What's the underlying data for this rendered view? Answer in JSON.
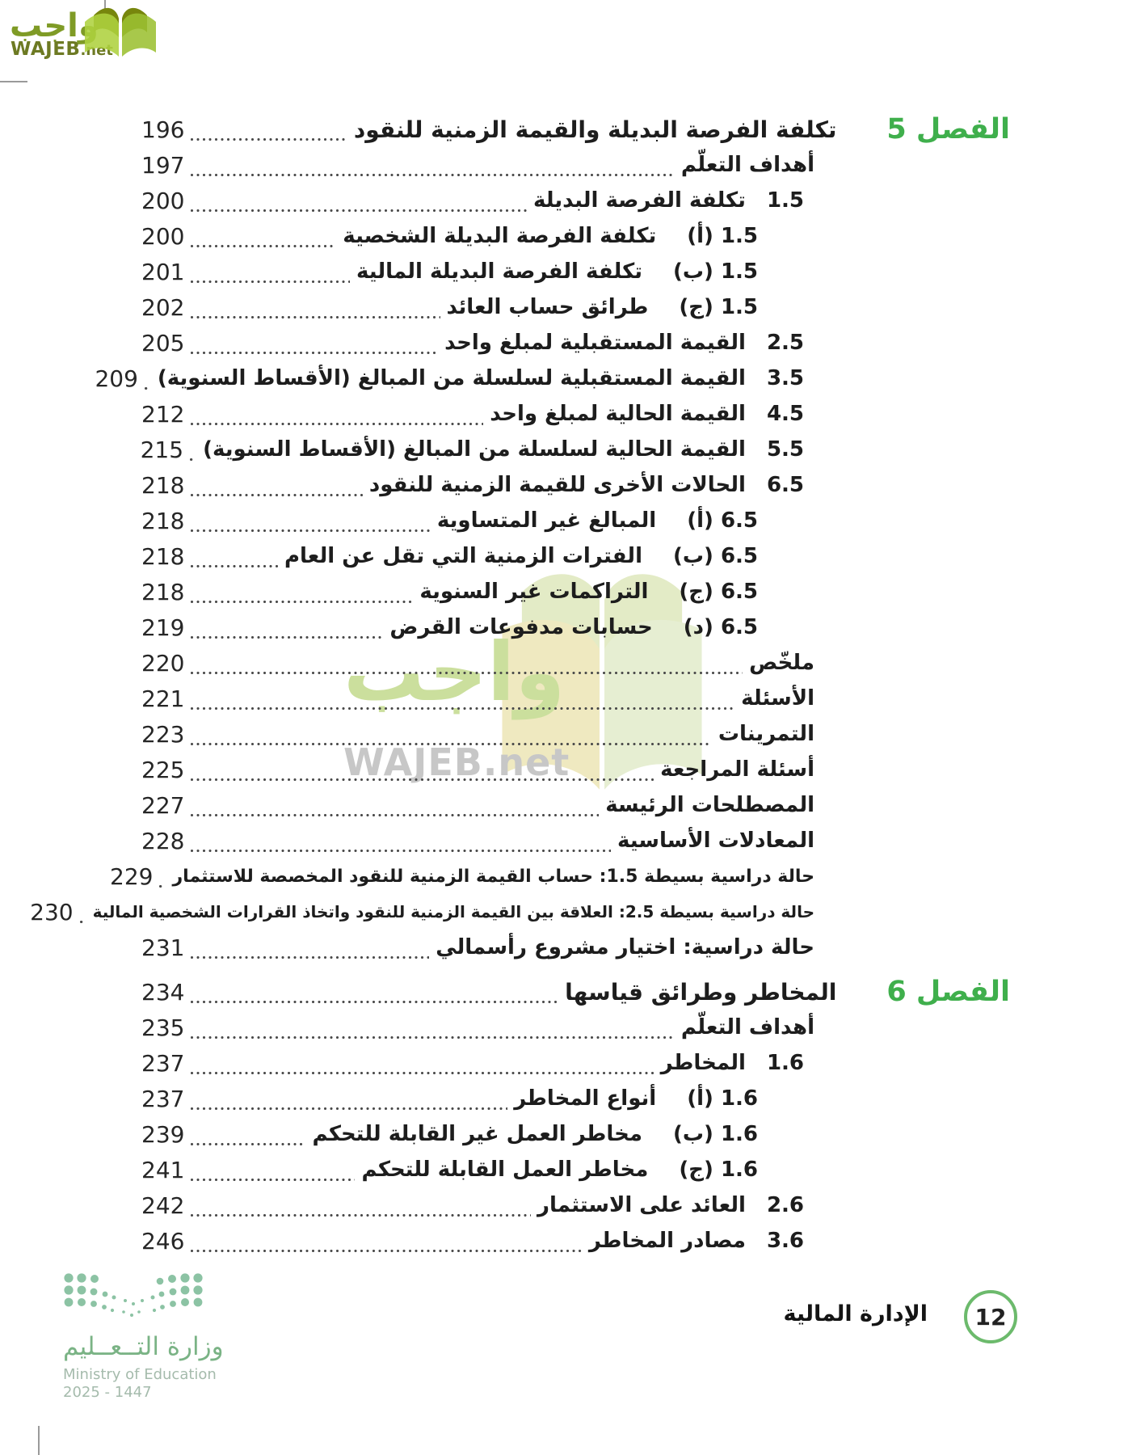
{
  "header_logo": {
    "arabic": "واجب",
    "latin": "WAJEB",
    "tld": ".net"
  },
  "watermark": {
    "arabic": "واجب",
    "latin": "WAJEB.net"
  },
  "toc": {
    "rows": [
      {
        "type": "chapter",
        "label": "الفصل 5",
        "title": "تكلفة الفرصة البديلة والقيمة الزمنية للنقود",
        "page": "196"
      },
      {
        "type": "plain",
        "title": "أهداف التعلّم",
        "page": "197"
      },
      {
        "type": "num",
        "secnum": "1.5",
        "title": "تكلفة الفرصة البديلة",
        "page": "200"
      },
      {
        "type": "sub",
        "secnum": "1.5 (أ)",
        "title": "تكلفة الفرصة البديلة الشخصية",
        "page": "200"
      },
      {
        "type": "sub",
        "secnum": "1.5 (ب)",
        "title": "تكلفة الفرصة البديلة المالية",
        "page": "201"
      },
      {
        "type": "sub",
        "secnum": "1.5 (ج)",
        "title": "طرائق حساب العائد",
        "page": "202"
      },
      {
        "type": "num",
        "secnum": "2.5",
        "title": "القيمة المستقبلية لمبلغ واحد",
        "page": "205"
      },
      {
        "type": "num",
        "secnum": "3.5",
        "title": "القيمة المستقبلية لسلسلة من المبالغ (الأقساط السنوية)",
        "page": "209"
      },
      {
        "type": "num",
        "secnum": "4.5",
        "title": "القيمة الحالية لمبلغ واحد",
        "page": "212"
      },
      {
        "type": "num",
        "secnum": "5.5",
        "title": "القيمة الحالية لسلسلة من المبالغ (الأقساط السنوية)",
        "page": "215"
      },
      {
        "type": "num",
        "secnum": "6.5",
        "title": "الحالات الأخرى للقيمة الزمنية للنقود",
        "page": "218"
      },
      {
        "type": "sub",
        "secnum": "6.5 (أ)",
        "title": "المبالغ غير المتساوية",
        "page": "218"
      },
      {
        "type": "sub",
        "secnum": "6.5 (ب)",
        "title": "الفترات الزمنية التي تقل عن العام",
        "page": "218"
      },
      {
        "type": "sub",
        "secnum": "6.5 (ج)",
        "title": "التراكمات غير السنوية",
        "page": "218"
      },
      {
        "type": "sub",
        "secnum": "6.5 (د)",
        "title": "حسابات مدفوعات القرض",
        "page": "219"
      },
      {
        "type": "plain",
        "title": "ملخّص",
        "page": "220"
      },
      {
        "type": "plain",
        "title": "الأسئلة",
        "page": "221"
      },
      {
        "type": "plain",
        "title": "التمرينات",
        "page": "223"
      },
      {
        "type": "plain",
        "title": "أسئلة المراجعة",
        "page": "225"
      },
      {
        "type": "plain",
        "title": "المصطلحات الرئيسة",
        "page": "227"
      },
      {
        "type": "plain",
        "title": "المعادلات الأساسية",
        "page": "228"
      },
      {
        "type": "plain",
        "title": "حالة دراسية بسيطة 1.5: حساب القيمة الزمنية للنقود المخصصة للاستثمار",
        "page": "229"
      },
      {
        "type": "plain",
        "title": "حالة دراسية بسيطة 2.5: العلاقة بين القيمة الزمنية للنقود واتخاذ القرارات الشخصية المالية",
        "page": "230"
      },
      {
        "type": "plain",
        "title": "حالة دراسية: اختيار مشروع رأسمالي",
        "page": "231"
      },
      {
        "type": "chapter",
        "label": "الفصل 6",
        "title": "المخاطر وطرائق قياسها",
        "page": "234"
      },
      {
        "type": "plain",
        "title": "أهداف التعلّم",
        "page": "235"
      },
      {
        "type": "num",
        "secnum": "1.6",
        "title": "المخاطر",
        "page": "237"
      },
      {
        "type": "sub",
        "secnum": "1.6 (أ)",
        "title": "أنواع المخاطر",
        "page": "237"
      },
      {
        "type": "sub",
        "secnum": "1.6 (ب)",
        "title": "مخاطر العمل غير القابلة للتحكم",
        "page": "239"
      },
      {
        "type": "sub",
        "secnum": "1.6 (ج)",
        "title": "مخاطر العمل القابلة للتحكم",
        "page": "241"
      },
      {
        "type": "num",
        "secnum": "2.6",
        "title": "العائد على الاستثمار",
        "page": "242"
      },
      {
        "type": "num",
        "secnum": "3.6",
        "title": "مصادر المخاطر",
        "page": "246"
      }
    ]
  },
  "footer": {
    "ministry_ar": "وزارة التــعــليم",
    "ministry_en": "Ministry of Education",
    "years": "2025 - 1447",
    "book_title": "الإدارة المالية",
    "page_number": "12"
  },
  "colors": {
    "chapter_green": "#3faf4c",
    "logo_olive": "#7f9b26",
    "ministry_green": "#8cc3a4",
    "circle_green": "#6cba6c"
  }
}
